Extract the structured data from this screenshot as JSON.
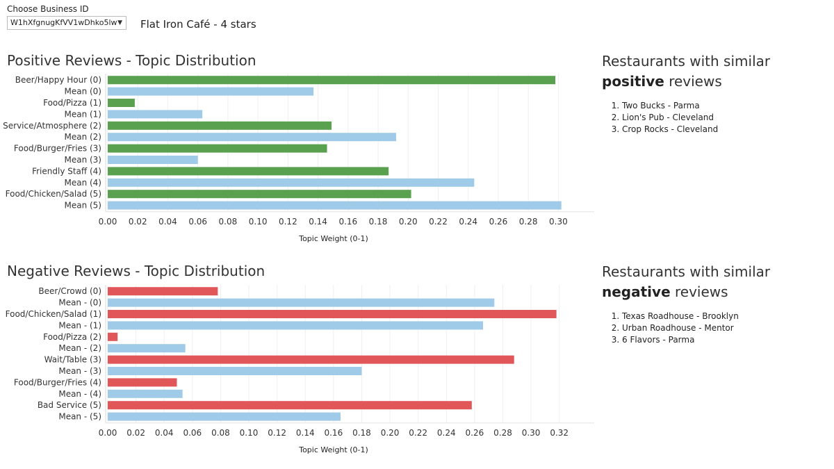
{
  "selector": {
    "label": "Choose Business ID",
    "value": "W1hXfgnugKfVV1wDhko5lw",
    "caret": "▼"
  },
  "business_title": "Flat Iron Café - 4 stars",
  "positive": {
    "title": "Positive Reviews - Topic Distribution",
    "similar_title_pre": "Restaurants with similar ",
    "similar_title_bold": "positive",
    "similar_title_post": " reviews",
    "similar": [
      "Two Bucks - Parma",
      "Lion's Pub - Cleveland",
      "Crop Rocks - Cleveland"
    ]
  },
  "negative": {
    "title": "Negative Reviews - Topic Distribution",
    "similar_title_pre": "Restaurants with similar ",
    "similar_title_bold": "negative",
    "similar_title_post": " reviews",
    "similar": [
      "Texas Roadhouse - Brooklyn",
      "Urban Roadhouse - Mentor",
      "6 Flavors - Parma"
    ]
  },
  "colors": {
    "positive_bar": "#59a14f",
    "negative_bar": "#e15759",
    "mean_bar": "#a0cbe8",
    "grid": "#efefef"
  },
  "chart_data": [
    {
      "type": "bar",
      "orientation": "horizontal",
      "title": "Positive Reviews - Topic Distribution",
      "xlabel": "Topic Weight (0-1)",
      "xlim": [
        0,
        0.31
      ],
      "xticks": [
        0.0,
        0.02,
        0.04,
        0.06,
        0.08,
        0.1,
        0.12,
        0.14,
        0.16,
        0.18,
        0.2,
        0.22,
        0.24,
        0.26,
        0.28,
        0.3
      ],
      "grid": true,
      "categories": [
        "Beer/Happy Hour (0)",
        "Mean (0)",
        "Food/Pizza (1)",
        "Mean (1)",
        "Service/Atmosphere (2)",
        "Mean (2)",
        "Food/Burger/Fries (3)",
        "Mean (3)",
        "Friendly Staff (4)",
        "Mean (4)",
        "Food/Chicken/Salad (5)",
        "Mean (5)"
      ],
      "values": [
        0.298,
        0.137,
        0.018,
        0.063,
        0.149,
        0.192,
        0.146,
        0.06,
        0.187,
        0.244,
        0.202,
        0.302
      ],
      "kinds": [
        "topic",
        "mean",
        "topic",
        "mean",
        "topic",
        "mean",
        "topic",
        "mean",
        "topic",
        "mean",
        "topic",
        "mean"
      ]
    },
    {
      "type": "bar",
      "orientation": "horizontal",
      "title": "Negative Reviews - Topic Distribution",
      "xlabel": "Topic Weight (0-1)",
      "xlim": [
        0,
        0.33
      ],
      "xticks": [
        0.0,
        0.02,
        0.04,
        0.06,
        0.08,
        0.1,
        0.12,
        0.14,
        0.16,
        0.18,
        0.2,
        0.22,
        0.24,
        0.26,
        0.28,
        0.3,
        0.32
      ],
      "grid": true,
      "categories": [
        "Beer/Crowd (0)",
        "Mean - (0)",
        "Food/Chicken/Salad (1)",
        "Mean - (1)",
        "Food/Pizza (2)",
        "Mean - (2)",
        "Wait/Table (3)",
        "Mean - (3)",
        "Food/Burger/Fries (4)",
        "Mean - (4)",
        "Bad Service (5)",
        "Mean - (5)"
      ],
      "values": [
        0.078,
        0.274,
        0.318,
        0.266,
        0.007,
        0.055,
        0.288,
        0.18,
        0.049,
        0.053,
        0.258,
        0.165
      ],
      "kinds": [
        "topic",
        "mean",
        "topic",
        "mean",
        "topic",
        "mean",
        "topic",
        "mean",
        "topic",
        "mean",
        "topic",
        "mean"
      ]
    }
  ]
}
